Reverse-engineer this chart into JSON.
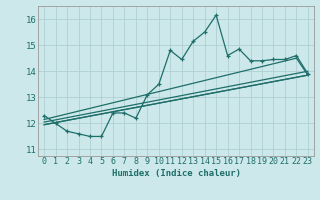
{
  "title": "",
  "xlabel": "Humidex (Indice chaleur)",
  "bg_color": "#cce8ea",
  "grid_color": "#b0d0d4",
  "line_color": "#1e6e6a",
  "xlim": [
    -0.5,
    23.5
  ],
  "ylim": [
    10.75,
    16.5
  ],
  "yticks": [
    11,
    12,
    13,
    14,
    15,
    16
  ],
  "xticks": [
    0,
    1,
    2,
    3,
    4,
    5,
    6,
    7,
    8,
    9,
    10,
    11,
    12,
    13,
    14,
    15,
    16,
    17,
    18,
    19,
    20,
    21,
    22,
    23
  ],
  "main_x": [
    0,
    1,
    2,
    3,
    4,
    5,
    6,
    7,
    8,
    9,
    10,
    11,
    12,
    13,
    14,
    15,
    16,
    17,
    18,
    19,
    20,
    21,
    22,
    23
  ],
  "main_y": [
    12.3,
    12.0,
    11.7,
    11.6,
    11.5,
    11.5,
    12.4,
    12.4,
    12.2,
    13.1,
    13.5,
    14.8,
    14.45,
    15.15,
    15.5,
    16.15,
    14.6,
    14.85,
    14.4,
    14.4,
    14.45,
    14.45,
    14.6,
    13.9
  ],
  "line1_x": [
    0,
    23
  ],
  "line1_y": [
    11.95,
    13.85
  ],
  "line2_x": [
    0,
    23
  ],
  "line2_y": [
    12.05,
    14.0
  ],
  "line3_x": [
    0,
    22,
    23,
    0
  ],
  "line3_y": [
    12.15,
    14.5,
    13.85,
    11.95
  ]
}
